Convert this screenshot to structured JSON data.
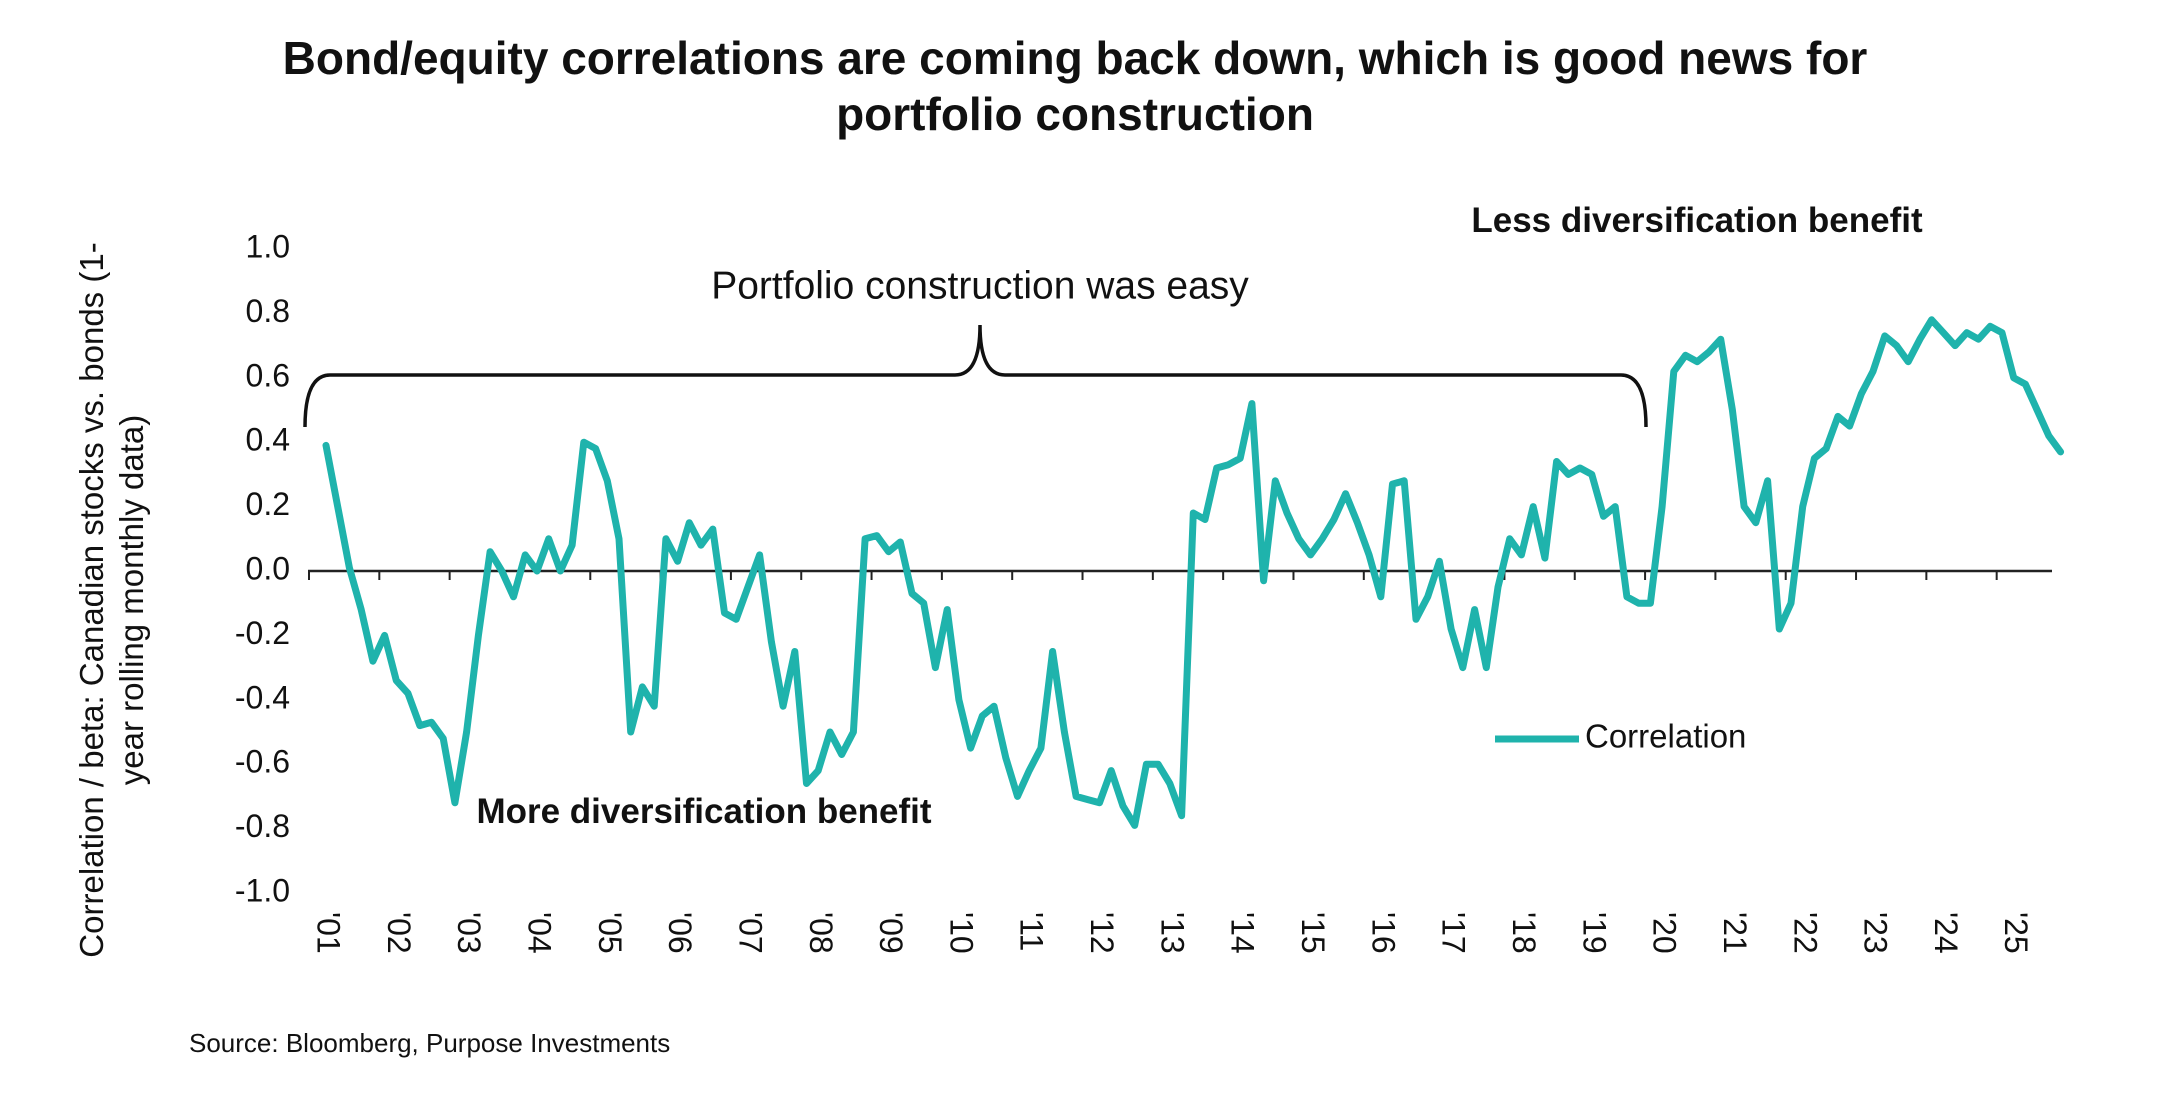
{
  "chart_data": {
    "type": "line",
    "title": "Bond/equity correlations are coming back down, which is good news for portfolio construction",
    "y_label": "Correlation / beta: Canadian stocks vs. bonds (1-year rolling monthly data)",
    "annotations": [
      "Portfolio construction was easy",
      "Less diversification benefit",
      "More diversification benefit"
    ],
    "source": "Source: Bloomberg, Purpose Investments",
    "categories": [
      "'01",
      null,
      null,
      null,
      null,
      null,
      "'02",
      null,
      null,
      null,
      null,
      null,
      "'03",
      null,
      null,
      null,
      null,
      null,
      "'04",
      null,
      null,
      null,
      null,
      null,
      "'05",
      null,
      null,
      null,
      null,
      null,
      "'06",
      null,
      null,
      null,
      null,
      null,
      "'07",
      null,
      null,
      null,
      null,
      null,
      "'08",
      null,
      null,
      null,
      null,
      null,
      "'09",
      null,
      null,
      null,
      null,
      null,
      "'10",
      null,
      null,
      null,
      null,
      null,
      "'11",
      null,
      null,
      null,
      null,
      null,
      "'12",
      null,
      null,
      null,
      null,
      null,
      "'13",
      null,
      null,
      null,
      null,
      null,
      "'14",
      null,
      null,
      null,
      null,
      null,
      "'15",
      null,
      null,
      null,
      null,
      null,
      "'16",
      null,
      null,
      null,
      null,
      null,
      "'17",
      null,
      null,
      null,
      null,
      null,
      "'18",
      null,
      null,
      null,
      null,
      null,
      "'19",
      null,
      null,
      null,
      null,
      null,
      "'20",
      null,
      null,
      null,
      null,
      null,
      "'21",
      null,
      null,
      null,
      null,
      null,
      "'22",
      null,
      null,
      null,
      null,
      null,
      "'23",
      null,
      null,
      null,
      null,
      null,
      "'24",
      null,
      null,
      null,
      null,
      null,
      "'25",
      null,
      null,
      null,
      null
    ],
    "series": [
      {
        "name": "Correlation",
        "color": "#1fb3ac",
        "values": [
          0.39,
          0.2,
          0.01,
          -0.12,
          -0.28,
          -0.2,
          -0.34,
          -0.38,
          -0.48,
          -0.47,
          -0.52,
          -0.72,
          -0.5,
          -0.2,
          0.06,
          0.0,
          -0.08,
          0.05,
          0.0,
          0.1,
          0.0,
          0.08,
          0.4,
          0.38,
          0.28,
          0.1,
          -0.5,
          -0.36,
          -0.42,
          0.1,
          0.03,
          0.15,
          0.08,
          0.13,
          -0.13,
          -0.15,
          -0.05,
          0.05,
          -0.22,
          -0.42,
          -0.25,
          -0.66,
          -0.62,
          -0.5,
          -0.57,
          -0.5,
          0.1,
          0.11,
          0.06,
          0.09,
          -0.07,
          -0.1,
          -0.3,
          -0.12,
          -0.4,
          -0.55,
          -0.45,
          -0.42,
          -0.58,
          -0.7,
          -0.62,
          -0.55,
          -0.25,
          -0.5,
          -0.7,
          -0.71,
          -0.72,
          -0.62,
          -0.73,
          -0.79,
          -0.6,
          -0.6,
          -0.66,
          -0.76,
          0.18,
          0.16,
          0.32,
          0.33,
          0.35,
          0.52,
          -0.03,
          0.28,
          0.18,
          0.1,
          0.05,
          0.1,
          0.16,
          0.24,
          0.15,
          0.05,
          -0.08,
          0.27,
          0.28,
          -0.15,
          -0.08,
          0.03,
          -0.18,
          -0.3,
          -0.12,
          -0.3,
          -0.05,
          0.1,
          0.05,
          0.2,
          0.04,
          0.34,
          0.3,
          0.32,
          0.3,
          0.17,
          0.2,
          -0.08,
          -0.1,
          -0.1,
          0.2,
          0.62,
          0.67,
          0.65,
          0.68,
          0.72,
          0.5,
          0.2,
          0.15,
          0.28,
          -0.18,
          -0.1,
          0.2,
          0.35,
          0.38,
          0.48,
          0.45,
          0.55,
          0.62,
          0.73,
          0.7,
          0.65,
          0.72,
          0.78,
          0.74,
          0.7,
          0.74,
          0.72,
          0.76,
          0.74,
          0.6,
          0.58,
          0.5,
          0.42,
          0.37
        ]
      }
    ],
    "ylim": [
      -1,
      1
    ],
    "yticks": [
      {
        "value": -1,
        "label": "-1.0"
      },
      {
        "value": -0.8,
        "label": "-0.8"
      },
      {
        "value": -0.6,
        "label": "-0.6"
      },
      {
        "value": -0.4,
        "label": "-0.4"
      },
      {
        "value": -0.2,
        "label": "-0.2"
      },
      {
        "value": 0,
        "label": "0.0"
      },
      {
        "value": 0.2,
        "label": "0.2"
      },
      {
        "value": 0.4,
        "label": "0.4"
      },
      {
        "value": 0.6,
        "label": "0.6"
      },
      {
        "value": 0.8,
        "label": "0.8"
      },
      {
        "value": 1,
        "label": "1.0"
      }
    ],
    "grid": false,
    "legend": "right"
  }
}
